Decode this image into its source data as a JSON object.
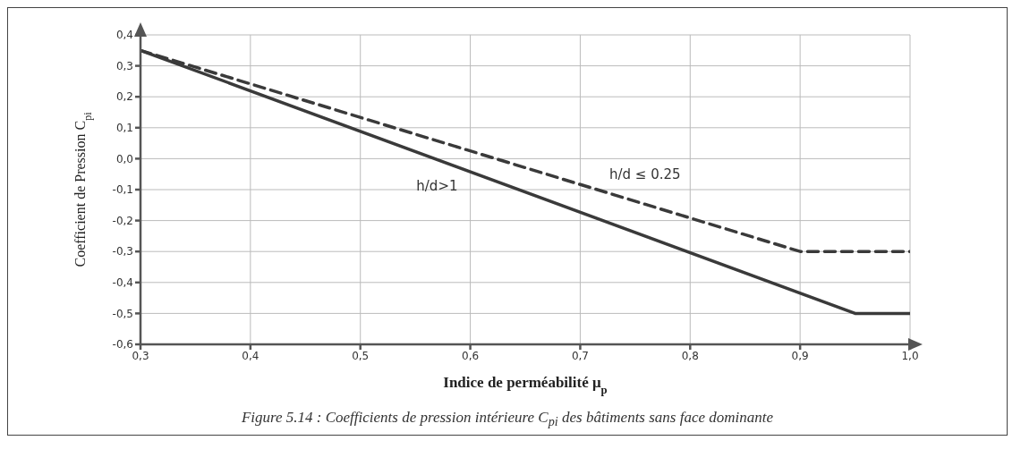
{
  "chart_data": {
    "type": "line",
    "xlabel": "Indice de perméabilité μ$_{p}$",
    "ylabel": "Coefficient de Pression C$_{pi}$",
    "annotations": [
      "Figure 5.14 : Coefficients de pression intérieure C$_{pi}$ des bâtiments sans face dominante"
    ],
    "series": [
      {
        "name": "h/d ≤ 0.25",
        "color": "#3a3a3a",
        "line_style": "dashed",
        "x": [
          0.3,
          0.9,
          1.0
        ],
        "values": [
          0.35,
          -0.3,
          -0.3
        ]
      },
      {
        "name": "h/d>1",
        "color": "#3a3a3a",
        "line_style": "solid",
        "x": [
          0.3,
          0.95,
          1.0
        ],
        "values": [
          0.35,
          -0.5,
          -0.5
        ]
      }
    ],
    "xlim": [
      0.3,
      1.0
    ],
    "xticks": [
      {
        "value": 0.3,
        "label": "0,3"
      },
      {
        "value": 0.4,
        "label": "0,4"
      },
      {
        "value": 0.5,
        "label": "0,5"
      },
      {
        "value": 0.6,
        "label": "0,6"
      },
      {
        "value": 0.7,
        "label": "0,7"
      },
      {
        "value": 0.8,
        "label": "0,8"
      },
      {
        "value": 0.9,
        "label": "0,9"
      },
      {
        "value": 1.0,
        "label": "1,0"
      }
    ],
    "ylim": [
      -0.6,
      0.4
    ],
    "yticks": [
      {
        "value": -0.6,
        "label": "-0,6"
      },
      {
        "value": -0.5,
        "label": "-0,5"
      },
      {
        "value": -0.4,
        "label": "-0,4"
      },
      {
        "value": -0.3,
        "label": "-0,3"
      },
      {
        "value": -0.2,
        "label": "-0,2"
      },
      {
        "value": -0.1,
        "label": "-0,1"
      },
      {
        "value": 0.0,
        "label": "0,0"
      },
      {
        "value": 0.1,
        "label": "0,1"
      },
      {
        "value": 0.2,
        "label": "0,2"
      },
      {
        "value": 0.3,
        "label": "0,3"
      },
      {
        "value": 0.4,
        "label": "0,4"
      }
    ],
    "grid": true,
    "marker": "none"
  }
}
